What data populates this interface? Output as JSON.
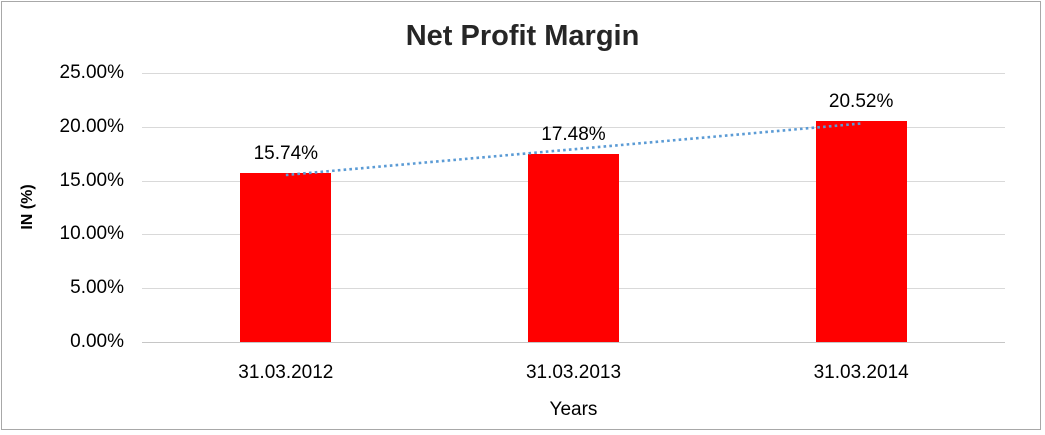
{
  "frame": {
    "border_color": "#a8a8a8",
    "background": "#ffffff"
  },
  "chart_data": {
    "type": "bar",
    "title": "Net Profit Margin",
    "categories": [
      "31.03.2012",
      "31.03.2013",
      "31.03.2014"
    ],
    "values": [
      15.74,
      17.48,
      20.52
    ],
    "data_labels": [
      "15.74%",
      "17.48%",
      "20.52%"
    ],
    "xlabel": "Years",
    "ylabel": "IN (%)",
    "ylim": [
      0,
      25
    ],
    "yticks": [
      {
        "value": 0,
        "label": "0.00%"
      },
      {
        "value": 5,
        "label": "5.00%"
      },
      {
        "value": 10,
        "label": "10.00%"
      },
      {
        "value": 15,
        "label": "15.00%"
      },
      {
        "value": 20,
        "label": "20.00%"
      },
      {
        "value": 25,
        "label": "25.00%"
      }
    ],
    "grid": true,
    "legend_position": "none",
    "bar_color": "#ff0000",
    "gridline_color": "#d9d9d9",
    "axis_line_color": "#c6c6c6",
    "title_color": "#262626",
    "trendline": {
      "series": "linear-trend",
      "style": "dotted",
      "color": "#5b9bd5"
    }
  }
}
